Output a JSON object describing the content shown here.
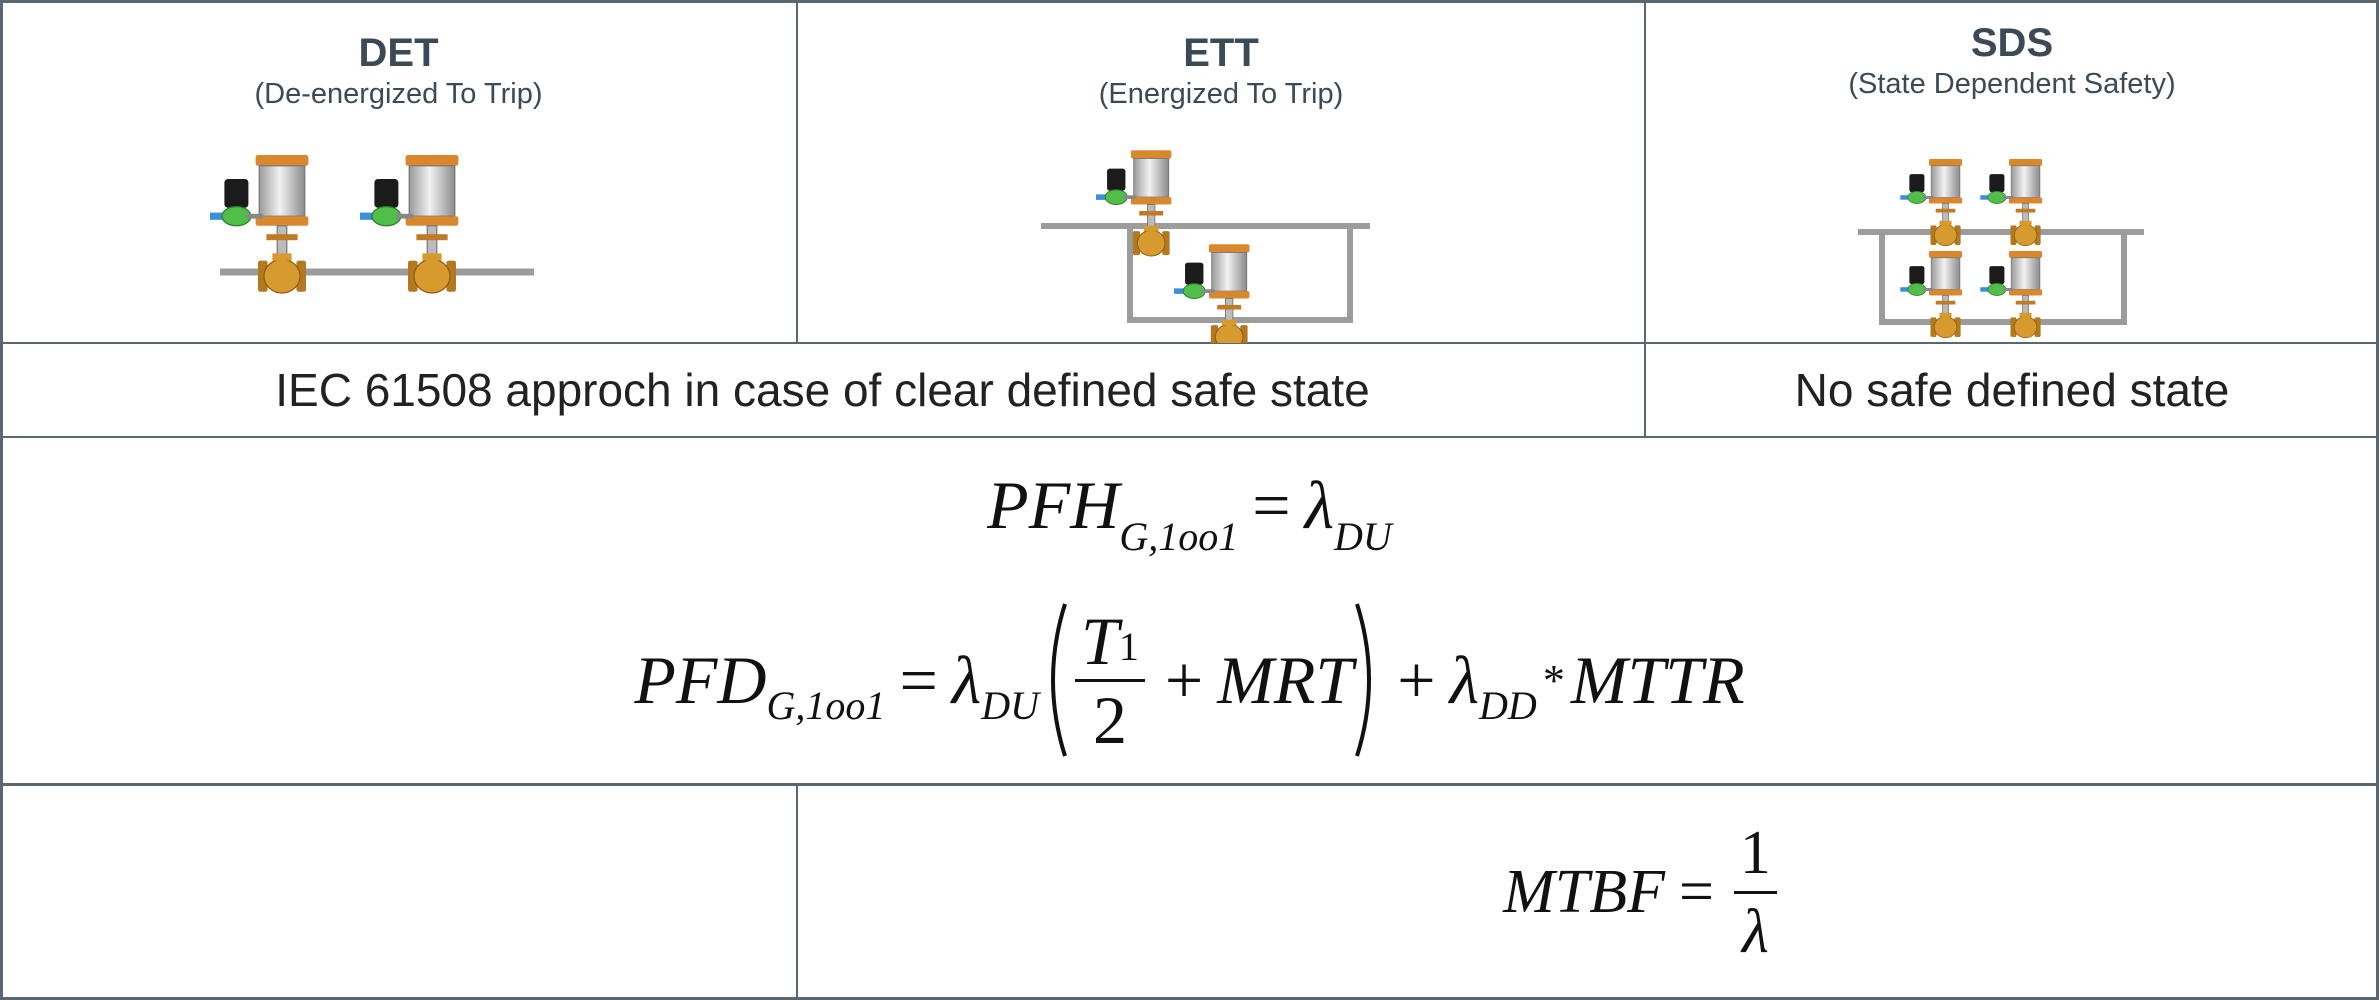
{
  "header": {
    "columns": [
      {
        "title": "DET",
        "subtitle": "(De-energized To Trip)"
      },
      {
        "title": "ETT",
        "subtitle": "(Energized To Trip)"
      },
      {
        "title": "SDS",
        "subtitle": "(State Dependent Safety)"
      }
    ]
  },
  "approach": {
    "left": "IEC 61508 approch in case of clear defined safe state",
    "right": "No safe defined state"
  },
  "formulas": {
    "pfh": {
      "symbol": "PFH",
      "sub": "G,1oo1",
      "eq": "=",
      "rhs": "λ",
      "rhs_sub": "DU"
    },
    "pfd": {
      "symbol": "PFD",
      "sub": "G,1oo1",
      "eq": "=",
      "lambda1": "λ",
      "lambda1_sub": "DU",
      "num": "T",
      "num_sub": "1",
      "den": "2",
      "plus1": "+",
      "mrt": "MRT",
      "plus2": "+",
      "lambda2": "λ",
      "lambda2_sub": "DD",
      "times": "*",
      "mttr": "MTTR"
    },
    "mtbf": {
      "symbol": "MTBF",
      "eq": "=",
      "num": "1",
      "den": "λ"
    }
  }
}
